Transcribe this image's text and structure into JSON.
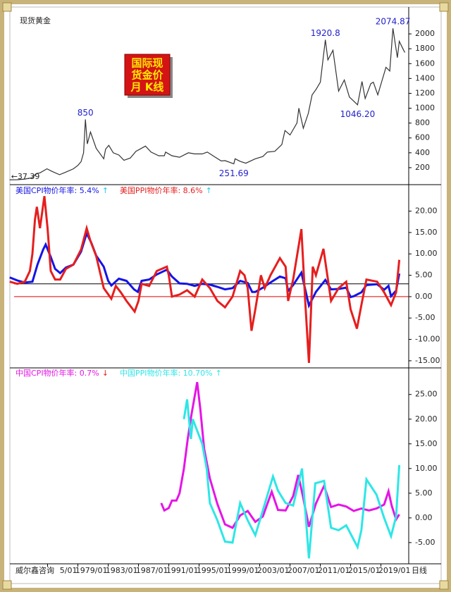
{
  "chart_data": [
    {
      "type": "line",
      "title": "现货黄金",
      "note_box": [
        "国际现",
        "货金价",
        "月 K线"
      ],
      "xlim": [
        "1970/08",
        "2022/09"
      ],
      "ylim": [
        0,
        2380
      ],
      "yticks": [
        200,
        400,
        600,
        800,
        1000,
        1200,
        1400,
        1600,
        1800,
        2000
      ],
      "series": [
        {
          "name": "现货黄金",
          "color": "#333333",
          "x": [
            "1970/01",
            "1971/01",
            "1972/01",
            "1973/01",
            "1973/07",
            "1974/01",
            "1974/12",
            "1975/08",
            "1976/08",
            "1977/06",
            "1978/06",
            "1979/01",
            "1979/06",
            "1979/10",
            "1980/01",
            "1980/04",
            "1980/09",
            "1981/06",
            "1982/06",
            "1982/09",
            "1983/02",
            "1983/09",
            "1984/06",
            "1985/02",
            "1985/12",
            "1986/09",
            "1987/12",
            "1988/09",
            "1989/09",
            "1990/06",
            "1990/08",
            "1991/06",
            "1992/06",
            "1993/08",
            "1994/06",
            "1995/06",
            "1996/02",
            "1997/01",
            "1997/12",
            "1998/06",
            "1999/08",
            "1999/10",
            "2000/06",
            "2001/03",
            "2002/06",
            "2003/06",
            "2004/01",
            "2005/01",
            "2005/12",
            "2006/05",
            "2007/01",
            "2007/12",
            "2008/03",
            "2008/10",
            "2009/06",
            "2009/12",
            "2010/06",
            "2011/01",
            "2011/09",
            "2012/01",
            "2012/09",
            "2013/06",
            "2014/03",
            "2014/11",
            "2015/12",
            "2016/07",
            "2016/12",
            "2017/09",
            "2018/01",
            "2018/08",
            "2019/09",
            "2020/03",
            "2020/08",
            "2021/03",
            "2021/06",
            "2022/01",
            "2022/03"
          ],
          "values": [
            37.39,
            38,
            46,
            65,
            120,
            130,
            185,
            150,
            105,
            140,
            185,
            230,
            280,
            400,
            850,
            520,
            680,
            460,
            320,
            450,
            500,
            400,
            370,
            300,
            330,
            420,
            490,
            410,
            360,
            360,
            410,
            360,
            340,
            400,
            385,
            385,
            410,
            350,
            290,
            295,
            251.69,
            320,
            285,
            260,
            320,
            350,
            410,
            420,
            510,
            700,
            640,
            800,
            1000,
            730,
            930,
            1180,
            1250,
            1350,
            1920.8,
            1650,
            1780,
            1230,
            1380,
            1150,
            1046.2,
            1360,
            1130,
            1330,
            1350,
            1180,
            1550,
            1500,
            2074.87,
            1680,
            1900,
            1780,
            1750
          ]
        }
      ],
      "annotations": [
        {
          "x": "1970/01",
          "label": "←37.39"
        },
        {
          "x": "1980/01",
          "label": "850"
        },
        {
          "x": "1999/08",
          "label": "251.69"
        },
        {
          "x": "2011/09",
          "label": "1920.8"
        },
        {
          "x": "2015/12",
          "label": "1046.20"
        },
        {
          "x": "2020/08",
          "label": "2074.87"
        }
      ]
    },
    {
      "type": "line",
      "xlim": [
        "1970/08",
        "2022/09"
      ],
      "ylim": [
        -16.5,
        25.7
      ],
      "yticks": [
        {
          "value": 20,
          "label": "20.00"
        },
        {
          "value": 15,
          "label": "15.00"
        },
        {
          "value": 10,
          "label": "10.00"
        },
        {
          "value": 5,
          "label": "5.00"
        },
        {
          "value": 0,
          "label": "0.00"
        },
        {
          "value": -5,
          "label": "-5.00"
        },
        {
          "value": -10,
          "label": "-10.00"
        },
        {
          "value": -15,
          "label": "-15.00"
        }
      ],
      "reference_lines": [
        {
          "value": 3,
          "color": "#000000"
        },
        {
          "value": 0,
          "color": "#e00000"
        }
      ],
      "series": [
        {
          "name": "美国CPI物价年率: 5.4%",
          "trend": "↑",
          "trend_color": "#1ec8e6",
          "color": "#1414e6",
          "x": [
            "1970/01",
            "1971/01",
            "1972/01",
            "1973/01",
            "1973/09",
            "1974/06",
            "1974/10",
            "1975/06",
            "1976/01",
            "1976/09",
            "1977/06",
            "1978/06",
            "1979/06",
            "1980/03",
            "1980/10",
            "1981/06",
            "1982/06",
            "1983/01",
            "1983/06",
            "1984/06",
            "1985/06",
            "1986/06",
            "1986/12",
            "1987/06",
            "1988/06",
            "1989/06",
            "1990/10",
            "1991/06",
            "1992/06",
            "1993/06",
            "1994/06",
            "1995/06",
            "1996/06",
            "1997/06",
            "1998/06",
            "1999/06",
            "2000/06",
            "2001/06",
            "2002/01",
            "2002/06",
            "2003/06",
            "2004/06",
            "2005/09",
            "2006/06",
            "2006/10",
            "2007/06",
            "2008/07",
            "2009/07",
            "2010/06",
            "2011/09",
            "2012/06",
            "2013/06",
            "2014/06",
            "2015/01",
            "2015/06",
            "2016/06",
            "2017/02",
            "2018/07",
            "2019/06",
            "2020/01",
            "2020/05",
            "2021/01",
            "2021/06"
          ],
          "values": [
            4.5,
            3.8,
            3.3,
            3.5,
            7.5,
            11,
            12.2,
            9.3,
            6.5,
            5.5,
            6.8,
            7.5,
            10.5,
            14.8,
            12.7,
            9.6,
            7,
            3.7,
            2.6,
            4.2,
            3.7,
            1.7,
            1.1,
            3.7,
            4,
            5.2,
            6.3,
            4.7,
            3.1,
            3,
            2.5,
            3,
            2.8,
            2.3,
            1.7,
            2,
            3.7,
            3.2,
            1.1,
            1.1,
            2.1,
            3.3,
            4.7,
            4.3,
            1.3,
            2.7,
            5.6,
            -2.1,
            1.1,
            3.9,
            1.7,
            1.8,
            2.1,
            -0.1,
            0.1,
            1,
            2.7,
            2.9,
            1.6,
            2.5,
            0.1,
            1.4,
            5.4
          ]
        },
        {
          "name": "美国PPI物价年率: 8.6%",
          "trend": "↑",
          "trend_color": "#1ec8e6",
          "color": "#e61e1e",
          "x": [
            "1970/01",
            "1971/01",
            "1972/01",
            "1972/09",
            "1973/01",
            "1973/05",
            "1973/08",
            "1974/01",
            "1974/08",
            "1975/01",
            "1975/06",
            "1976/01",
            "1976/09",
            "1977/06",
            "1978/06",
            "1979/06",
            "1980/03",
            "1980/09",
            "1981/06",
            "1982/06",
            "1983/06",
            "1984/01",
            "1984/09",
            "1985/06",
            "1986/07",
            "1987/01",
            "1987/06",
            "1988/06",
            "1989/06",
            "1990/10",
            "1991/01",
            "1991/06",
            "1992/06",
            "1993/06",
            "1994/06",
            "1995/06",
            "1996/06",
            "1997/06",
            "1998/06",
            "1999/06",
            "2000/06",
            "2001/01",
            "2001/06",
            "2001/12",
            "2002/06",
            "2003/03",
            "2003/09",
            "2004/06",
            "2005/09",
            "2006/06",
            "2006/10",
            "2007/06",
            "2008/07",
            "2009/01",
            "2009/07",
            "2010/01",
            "2010/06",
            "2011/06",
            "2012/06",
            "2013/06",
            "2014/06",
            "2015/01",
            "2015/11",
            "2016/06",
            "2017/02",
            "2018/07",
            "2019/06",
            "2020/05",
            "2021/01",
            "2021/06"
          ],
          "values": [
            3.5,
            3,
            3.5,
            6,
            10,
            18,
            21,
            16,
            23.5,
            16,
            6,
            4,
            4,
            6.5,
            7.5,
            11,
            16,
            13,
            9.5,
            2,
            -0.5,
            2.5,
            1,
            -1,
            -3.5,
            -1,
            3,
            2.5,
            6,
            7,
            5,
            0,
            0.5,
            1.5,
            0,
            4,
            2,
            -1,
            -2.5,
            0,
            6,
            5,
            2,
            -8,
            -3,
            5,
            2,
            5,
            9,
            7,
            -1,
            4,
            15.8,
            -1,
            -15.5,
            7,
            5,
            11.2,
            -1,
            2,
            3.5,
            -3,
            -7.5,
            -2,
            4,
            3.5,
            1,
            -2,
            1,
            8.6
          ]
        }
      ]
    },
    {
      "type": "line",
      "xlim": [
        "1970/08",
        "2022/09"
      ],
      "ylim": [
        -9.3,
        30.1
      ],
      "yticks": [
        {
          "value": 25,
          "label": "25.00"
        },
        {
          "value": 20,
          "label": "20.00"
        },
        {
          "value": 15,
          "label": "15.00"
        },
        {
          "value": 10,
          "label": "10.00"
        },
        {
          "value": 5,
          "label": "5.00"
        },
        {
          "value": 0,
          "label": "0.00"
        },
        {
          "value": -5,
          "label": "-5.00"
        }
      ],
      "xticks": [
        {
          "value": "1975/01",
          "label": "5/01"
        },
        "1979/01",
        "1983/01",
        "1987/01",
        "1991/01",
        "1995/01",
        "1999/01",
        "2003/01",
        "2007/01",
        "2011/01",
        "2015/01",
        "2019/01"
      ],
      "source": "威尔鑫咨询",
      "period": "日线",
      "series": [
        {
          "name": "中国CPI物价年率: 0.7%",
          "trend": "↓",
          "trend_color": "#e61e1e",
          "color": "#e614e6",
          "x": [
            "1990/01",
            "1990/06",
            "1991/01",
            "1991/06",
            "1992/01",
            "1992/06",
            "1993/01",
            "1993/07",
            "1994/01",
            "1994/10",
            "1995/03",
            "1995/09",
            "1996/06",
            "1997/06",
            "1998/06",
            "1999/06",
            "2000/06",
            "2001/06",
            "2002/06",
            "2003/06",
            "2004/08",
            "2005/06",
            "2006/06",
            "2007/06",
            "2008/02",
            "2008/09",
            "2009/07",
            "2010/06",
            "2011/07",
            "2012/06",
            "2013/06",
            "2014/06",
            "2015/06",
            "2016/06",
            "2017/06",
            "2018/06",
            "2019/06",
            "2020/01",
            "2020/06",
            "2021/01",
            "2021/06"
          ],
          "values": [
            3,
            1.5,
            2,
            3.5,
            3.5,
            5,
            10,
            16,
            21,
            27.5,
            22,
            14,
            8,
            2.8,
            -1.3,
            -2,
            0.5,
            1.4,
            -0.8,
            0.3,
            5.3,
            1.6,
            1.5,
            4.4,
            8.7,
            4.6,
            -1.8,
            2.9,
            6.5,
            2.2,
            2.7,
            2.3,
            1.4,
            1.9,
            1.5,
            1.9,
            2.7,
            5.4,
            2.5,
            -0.3,
            0.7
          ]
        },
        {
          "name": "中国PPI物价年率: 10.70%",
          "trend": "↑",
          "trend_color": "#2ee6e6",
          "color": "#2ee6e6",
          "x": [
            "1993/01",
            "1993/06",
            "1993/12",
            "1994/03",
            "1994/09",
            "1995/06",
            "1996/01",
            "1996/06",
            "1997/06",
            "1998/06",
            "1999/06",
            "2000/06",
            "2001/06",
            "2002/06",
            "2003/06",
            "2004/10",
            "2005/06",
            "2006/06",
            "2007/06",
            "2008/08",
            "2009/07",
            "2010/05",
            "2011/07",
            "2012/06",
            "2013/06",
            "2014/06",
            "2015/12",
            "2016/06",
            "2017/02",
            "2018/06",
            "2019/06",
            "2020/05",
            "2021/01",
            "2021/06"
          ],
          "values": [
            20,
            24,
            16,
            20,
            18,
            15,
            10,
            3,
            -0.5,
            -4.8,
            -5,
            3,
            -0.5,
            -3.5,
            1.5,
            8.4,
            5.5,
            3,
            2.5,
            10,
            -8.2,
            7,
            7.5,
            -2,
            -2.5,
            -1.5,
            -5.9,
            -2.5,
            7.8,
            4.7,
            0,
            -3.7,
            0.3,
            10.7
          ]
        }
      ]
    }
  ]
}
